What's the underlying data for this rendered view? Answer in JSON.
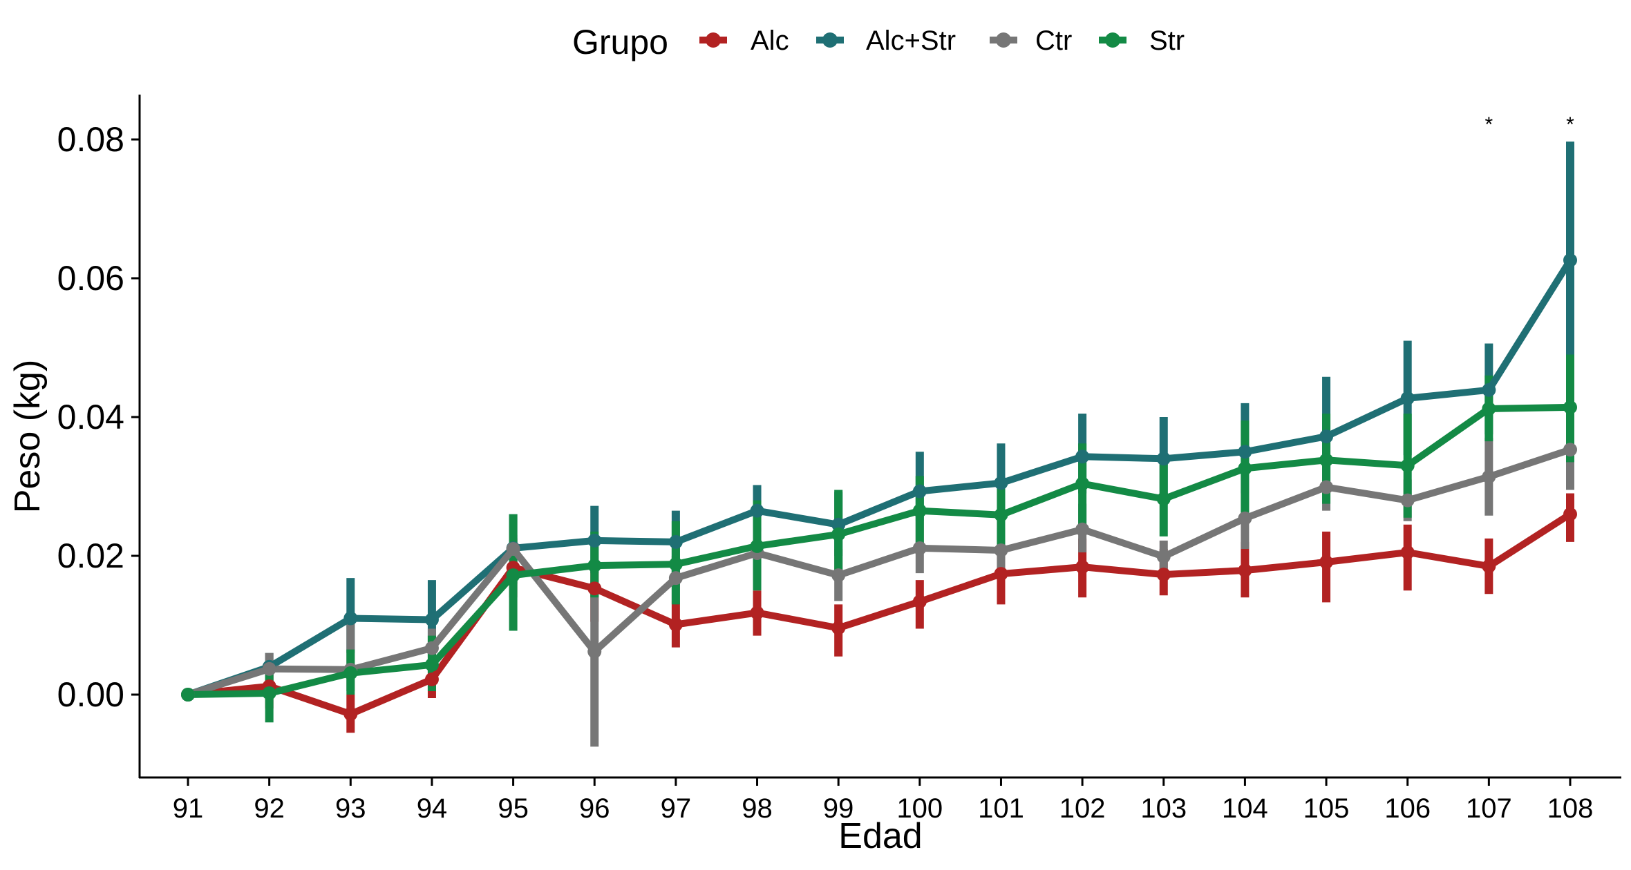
{
  "chart_data": {
    "type": "line",
    "xlabel": "Edad",
    "ylabel": "Peso (kg)",
    "legend": {
      "title": "Grupo",
      "position": "top"
    },
    "categories": [
      "91",
      "92",
      "93",
      "94",
      "95",
      "96",
      "97",
      "98",
      "99",
      "100",
      "101",
      "102",
      "103",
      "104",
      "105",
      "106",
      "107",
      "108"
    ],
    "ylim": [
      -0.011,
      0.086
    ],
    "yticks": [
      0.0,
      0.02,
      0.04,
      0.06,
      0.08
    ],
    "ytick_labels": [
      "0.00",
      "0.02",
      "0.04",
      "0.06",
      "0.08"
    ],
    "grid": false,
    "series": [
      {
        "name": "Alc",
        "color": "#B22222",
        "values": [
          0.0,
          0.0012,
          -0.0028,
          0.0022,
          0.0183,
          0.0153,
          0.0101,
          0.0118,
          0.0096,
          0.0134,
          0.0174,
          0.0184,
          0.0173,
          0.0179,
          0.0191,
          0.0205,
          0.0185,
          0.026
        ],
        "err_low": [
          0.0,
          -0.002,
          -0.0055,
          -0.0005,
          0.014,
          0.0105,
          0.0068,
          0.0085,
          0.0055,
          0.0095,
          0.013,
          0.014,
          0.0143,
          0.014,
          0.0133,
          0.015,
          0.0145,
          0.022
        ],
        "err_high": [
          0.0,
          0.004,
          0.0,
          0.0045,
          0.0225,
          0.019,
          0.0135,
          0.015,
          0.013,
          0.0165,
          0.021,
          0.0225,
          0.021,
          0.022,
          0.0235,
          0.0245,
          0.0225,
          0.029
        ]
      },
      {
        "name": "Alc+Str",
        "color": "#1F6F74",
        "values": [
          0.0,
          0.004,
          0.011,
          0.0108,
          0.0211,
          0.0222,
          0.022,
          0.0265,
          0.0245,
          0.0293,
          0.0305,
          0.0343,
          0.034,
          0.035,
          0.0372,
          0.0427,
          0.0439,
          0.0626
        ],
        "err_low": [
          0.0,
          0.0015,
          0.006,
          0.0055,
          0.016,
          0.0175,
          0.0175,
          0.0235,
          0.02,
          0.025,
          0.0255,
          0.029,
          0.028,
          0.029,
          0.03,
          0.0345,
          0.0375,
          0.045
        ],
        "err_high": [
          0.0,
          0.006,
          0.0168,
          0.0165,
          0.026,
          0.0272,
          0.0265,
          0.0302,
          0.0292,
          0.035,
          0.0362,
          0.0405,
          0.04,
          0.042,
          0.0458,
          0.051,
          0.0506,
          0.0797
        ]
      },
      {
        "name": "Ctr",
        "color": "#767676",
        "values": [
          0.0,
          0.0037,
          0.0036,
          0.0067,
          0.021,
          0.0062,
          0.0168,
          0.0204,
          0.0172,
          0.0211,
          0.0208,
          0.0238,
          0.0199,
          0.0254,
          0.0299,
          0.028,
          0.0314,
          0.0353
        ],
        "err_low": [
          0.0,
          0.0015,
          0.0005,
          0.004,
          0.019,
          -0.0075,
          0.0135,
          0.0165,
          0.0135,
          0.0175,
          0.018,
          0.0205,
          0.0175,
          0.021,
          0.0265,
          0.025,
          0.0258,
          0.0295
        ],
        "err_high": [
          0.0,
          0.006,
          0.0105,
          0.0095,
          0.023,
          0.0165,
          0.02,
          0.024,
          0.021,
          0.025,
          0.024,
          0.0275,
          0.0222,
          0.0295,
          0.0335,
          0.031,
          0.037,
          0.041
        ]
      },
      {
        "name": "Str",
        "color": "#138A45",
        "values": [
          0.0,
          0.0002,
          0.0031,
          0.0043,
          0.0172,
          0.0186,
          0.0188,
          0.0214,
          0.0231,
          0.0265,
          0.0259,
          0.0304,
          0.0282,
          0.0326,
          0.0338,
          0.033,
          0.0412,
          0.0414
        ],
        "err_low": [
          0.0,
          -0.004,
          0.0,
          0.0005,
          0.0092,
          0.014,
          0.013,
          0.015,
          0.0165,
          0.0215,
          0.0215,
          0.0245,
          0.0228,
          0.0255,
          0.0275,
          0.0255,
          0.0365,
          0.0335
        ],
        "err_high": [
          0.0,
          0.0045,
          0.0065,
          0.0085,
          0.026,
          0.0235,
          0.025,
          0.028,
          0.0295,
          0.0315,
          0.0305,
          0.0362,
          0.0335,
          0.0395,
          0.0405,
          0.0405,
          0.046,
          0.049
        ]
      }
    ],
    "annotations": [
      {
        "x": "107",
        "text": "*"
      },
      {
        "x": "108",
        "text": "*"
      }
    ]
  }
}
